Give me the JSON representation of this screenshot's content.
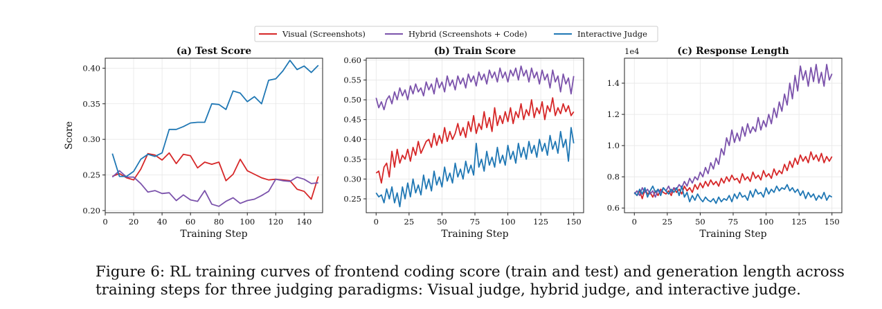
{
  "legend": {
    "items": [
      {
        "label": "Visual (Screenshots)",
        "color": "#d62728"
      },
      {
        "label": "Hybrid (Screenshots + Code)",
        "color": "#7b52ab"
      },
      {
        "label": "Interactive Judge",
        "color": "#1f77b4"
      }
    ]
  },
  "caption": "Figure 6: RL training curves of frontend coding score (train and test) and generation length across training steps for three judging paradigms: Visual judge, hybrid judge, and interactive judge.",
  "chart_data": [
    {
      "type": "line",
      "title": "(a) Test Score",
      "xlabel": "Training Step",
      "ylabel": "Score",
      "xlim": [
        0,
        153
      ],
      "ylim": [
        0.197,
        0.414
      ],
      "xticks": [
        0,
        20,
        40,
        60,
        80,
        100,
        120,
        140
      ],
      "yticks": [
        0.2,
        0.25,
        0.3,
        0.35,
        0.4
      ],
      "ytick_labels": [
        "0.20",
        "0.25",
        "0.30",
        "0.35",
        "0.40"
      ],
      "grid": true,
      "exponent_label": "",
      "x": [
        5,
        10,
        15,
        20,
        25,
        30,
        35,
        40,
        45,
        50,
        55,
        60,
        65,
        70,
        75,
        80,
        85,
        90,
        95,
        100,
        105,
        110,
        115,
        120,
        125,
        130,
        135,
        140,
        145,
        150
      ],
      "series": [
        {
          "name": "Visual (Screenshots)",
          "color": "#d62728",
          "values": [
            0.248,
            0.252,
            0.246,
            0.243,
            0.258,
            0.28,
            0.278,
            0.271,
            0.281,
            0.266,
            0.279,
            0.277,
            0.26,
            0.268,
            0.265,
            0.268,
            0.242,
            0.251,
            0.272,
            0.256,
            0.251,
            0.246,
            0.243,
            0.244,
            0.243,
            0.242,
            0.23,
            0.227,
            0.216,
            0.248
          ]
        },
        {
          "name": "Hybrid (Screenshots + Code)",
          "color": "#7b52ab",
          "values": [
            0.247,
            0.256,
            0.247,
            0.247,
            0.238,
            0.226,
            0.228,
            0.224,
            0.225,
            0.214,
            0.222,
            0.215,
            0.213,
            0.228,
            0.209,
            0.206,
            0.213,
            0.218,
            0.21,
            0.214,
            0.216,
            0.221,
            0.227,
            0.244,
            0.242,
            0.241,
            0.247,
            0.244,
            0.238,
            0.239
          ]
        },
        {
          "name": "Interactive Judge",
          "color": "#1f77b4",
          "values": [
            0.28,
            0.248,
            0.248,
            0.255,
            0.272,
            0.279,
            0.276,
            0.281,
            0.314,
            0.314,
            0.318,
            0.323,
            0.324,
            0.324,
            0.35,
            0.349,
            0.342,
            0.368,
            0.365,
            0.353,
            0.36,
            0.35,
            0.383,
            0.385,
            0.396,
            0.411,
            0.398,
            0.403,
            0.394,
            0.404
          ]
        }
      ]
    },
    {
      "type": "line",
      "title": "(b) Train Score",
      "xlabel": "Training Step",
      "ylabel": "",
      "xlim": [
        -7.5,
        157.5
      ],
      "ylim": [
        0.215,
        0.605
      ],
      "xticks": [
        0,
        25,
        50,
        75,
        100,
        125,
        150
      ],
      "yticks": [
        0.25,
        0.3,
        0.35,
        0.4,
        0.45,
        0.5,
        0.55,
        0.6
      ],
      "ytick_labels": [
        "0.25",
        "0.30",
        "0.35",
        "0.40",
        "0.45",
        "0.50",
        "0.55",
        "0.60"
      ],
      "grid": true,
      "exponent_label": "",
      "x_start": 0,
      "x_step": 2,
      "series": [
        {
          "name": "Visual (Screenshots)",
          "color": "#d62728",
          "values": [
            0.315,
            0.32,
            0.29,
            0.33,
            0.34,
            0.305,
            0.37,
            0.33,
            0.375,
            0.34,
            0.36,
            0.35,
            0.375,
            0.345,
            0.38,
            0.36,
            0.395,
            0.365,
            0.38,
            0.395,
            0.4,
            0.38,
            0.415,
            0.385,
            0.41,
            0.39,
            0.43,
            0.395,
            0.42,
            0.4,
            0.415,
            0.44,
            0.41,
            0.43,
            0.405,
            0.445,
            0.42,
            0.46,
            0.415,
            0.44,
            0.425,
            0.47,
            0.43,
            0.455,
            0.42,
            0.48,
            0.435,
            0.46,
            0.44,
            0.47,
            0.445,
            0.48,
            0.44,
            0.47,
            0.455,
            0.49,
            0.45,
            0.475,
            0.46,
            0.5,
            0.455,
            0.48,
            0.465,
            0.495,
            0.45,
            0.485,
            0.47,
            0.505,
            0.46,
            0.48,
            0.465,
            0.49,
            0.47,
            0.485,
            0.46,
            0.47
          ]
        },
        {
          "name": "Hybrid (Screenshots + Code)",
          "color": "#7b52ab",
          "values": [
            0.505,
            0.48,
            0.495,
            0.475,
            0.5,
            0.51,
            0.49,
            0.52,
            0.5,
            0.53,
            0.51,
            0.525,
            0.5,
            0.535,
            0.515,
            0.54,
            0.52,
            0.53,
            0.51,
            0.545,
            0.525,
            0.54,
            0.515,
            0.555,
            0.53,
            0.545,
            0.52,
            0.56,
            0.535,
            0.55,
            0.525,
            0.56,
            0.54,
            0.555,
            0.53,
            0.565,
            0.545,
            0.56,
            0.535,
            0.57,
            0.55,
            0.565,
            0.54,
            0.575,
            0.555,
            0.57,
            0.545,
            0.58,
            0.555,
            0.57,
            0.545,
            0.575,
            0.56,
            0.58,
            0.55,
            0.585,
            0.56,
            0.575,
            0.545,
            0.58,
            0.555,
            0.57,
            0.54,
            0.575,
            0.55,
            0.565,
            0.53,
            0.575,
            0.545,
            0.56,
            0.52,
            0.565,
            0.54,
            0.555,
            0.515,
            0.56
          ]
        },
        {
          "name": "Interactive Judge",
          "color": "#1f77b4",
          "values": [
            0.265,
            0.255,
            0.26,
            0.24,
            0.275,
            0.25,
            0.28,
            0.24,
            0.265,
            0.23,
            0.28,
            0.25,
            0.29,
            0.255,
            0.3,
            0.265,
            0.285,
            0.26,
            0.31,
            0.275,
            0.3,
            0.27,
            0.32,
            0.285,
            0.305,
            0.28,
            0.33,
            0.295,
            0.315,
            0.29,
            0.34,
            0.305,
            0.325,
            0.3,
            0.345,
            0.315,
            0.335,
            0.31,
            0.39,
            0.33,
            0.35,
            0.32,
            0.37,
            0.335,
            0.355,
            0.33,
            0.38,
            0.34,
            0.36,
            0.335,
            0.385,
            0.35,
            0.37,
            0.34,
            0.39,
            0.355,
            0.38,
            0.35,
            0.395,
            0.365,
            0.385,
            0.355,
            0.4,
            0.37,
            0.39,
            0.36,
            0.41,
            0.375,
            0.395,
            0.365,
            0.42,
            0.38,
            0.4,
            0.345,
            0.43,
            0.39
          ]
        }
      ]
    },
    {
      "type": "line",
      "title": "(c) Response Length",
      "xlabel": "Training Step",
      "ylabel": "",
      "xlim": [
        -7.5,
        157.5
      ],
      "ylim": [
        0.57,
        1.56
      ],
      "xticks": [
        0,
        25,
        50,
        75,
        100,
        125,
        150
      ],
      "yticks": [
        0.6,
        0.8,
        1.0,
        1.2,
        1.4
      ],
      "ytick_labels": [
        "0.6",
        "0.8",
        "1.0",
        "1.2",
        "1.4"
      ],
      "grid": true,
      "exponent_label": "1e4",
      "x_start": 0,
      "x_step": 2,
      "series": [
        {
          "name": "Visual (Screenshots)",
          "color": "#d62728",
          "values": [
            0.7,
            0.68,
            0.71,
            0.66,
            0.72,
            0.69,
            0.7,
            0.67,
            0.71,
            0.68,
            0.72,
            0.7,
            0.69,
            0.71,
            0.68,
            0.73,
            0.7,
            0.72,
            0.69,
            0.74,
            0.71,
            0.73,
            0.7,
            0.75,
            0.72,
            0.76,
            0.73,
            0.77,
            0.74,
            0.78,
            0.75,
            0.77,
            0.74,
            0.79,
            0.76,
            0.8,
            0.77,
            0.81,
            0.78,
            0.79,
            0.76,
            0.82,
            0.78,
            0.8,
            0.77,
            0.83,
            0.79,
            0.81,
            0.78,
            0.84,
            0.8,
            0.82,
            0.79,
            0.85,
            0.81,
            0.84,
            0.82,
            0.88,
            0.84,
            0.9,
            0.86,
            0.92,
            0.88,
            0.94,
            0.9,
            0.93,
            0.89,
            0.96,
            0.91,
            0.94,
            0.9,
            0.95,
            0.89,
            0.93,
            0.9,
            0.93
          ]
        },
        {
          "name": "Hybrid (Screenshots + Code)",
          "color": "#7b52ab",
          "values": [
            0.69,
            0.71,
            0.68,
            0.73,
            0.7,
            0.72,
            0.69,
            0.71,
            0.67,
            0.72,
            0.7,
            0.73,
            0.71,
            0.74,
            0.7,
            0.73,
            0.72,
            0.75,
            0.73,
            0.77,
            0.74,
            0.79,
            0.76,
            0.8,
            0.78,
            0.83,
            0.8,
            0.86,
            0.82,
            0.89,
            0.85,
            0.92,
            0.88,
            0.98,
            0.94,
            1.05,
            1.0,
            1.1,
            1.02,
            1.08,
            1.03,
            1.12,
            1.06,
            1.14,
            1.08,
            1.12,
            1.09,
            1.18,
            1.1,
            1.16,
            1.12,
            1.2,
            1.14,
            1.24,
            1.18,
            1.28,
            1.22,
            1.33,
            1.26,
            1.4,
            1.3,
            1.45,
            1.35,
            1.51,
            1.42,
            1.48,
            1.38,
            1.5,
            1.41,
            1.52,
            1.4,
            1.47,
            1.38,
            1.52,
            1.42,
            1.46
          ]
        },
        {
          "name": "Interactive Judge",
          "color": "#1f77b4",
          "values": [
            0.7,
            0.68,
            0.72,
            0.69,
            0.73,
            0.67,
            0.71,
            0.74,
            0.7,
            0.72,
            0.68,
            0.73,
            0.71,
            0.69,
            0.72,
            0.7,
            0.73,
            0.68,
            0.74,
            0.67,
            0.7,
            0.64,
            0.68,
            0.65,
            0.69,
            0.66,
            0.64,
            0.67,
            0.65,
            0.64,
            0.66,
            0.63,
            0.67,
            0.64,
            0.66,
            0.65,
            0.68,
            0.64,
            0.69,
            0.66,
            0.7,
            0.67,
            0.68,
            0.65,
            0.71,
            0.67,
            0.72,
            0.69,
            0.7,
            0.67,
            0.73,
            0.69,
            0.72,
            0.7,
            0.74,
            0.71,
            0.73,
            0.72,
            0.75,
            0.71,
            0.73,
            0.7,
            0.72,
            0.68,
            0.71,
            0.66,
            0.7,
            0.67,
            0.69,
            0.65,
            0.68,
            0.66,
            0.7,
            0.65,
            0.68,
            0.67
          ]
        }
      ]
    }
  ]
}
